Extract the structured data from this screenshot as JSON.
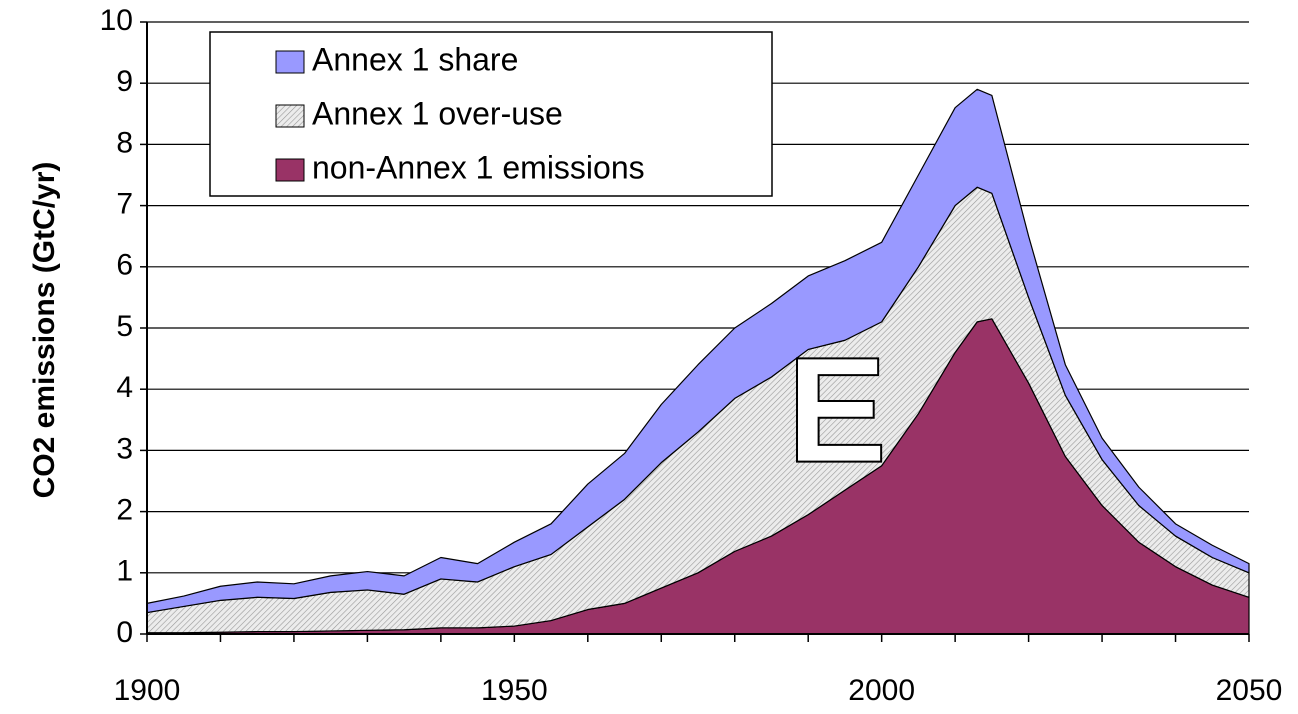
{
  "chart_data": {
    "type": "stacked_area",
    "ylabel": "CO2 emissions (GtC/yr)",
    "annotation": "E",
    "x": [
      1900,
      1905,
      1910,
      1915,
      1920,
      1925,
      1930,
      1935,
      1940,
      1945,
      1950,
      1955,
      1960,
      1965,
      1970,
      1975,
      1980,
      1985,
      1990,
      1995,
      2000,
      2005,
      2010,
      2013,
      2015,
      2020,
      2025,
      2030,
      2035,
      2040,
      2045,
      2050
    ],
    "series": [
      {
        "name": "Annex 1 share",
        "color": "#9999ff",
        "values": [
          0.15,
          0.17,
          0.23,
          0.25,
          0.24,
          0.27,
          0.3,
          0.3,
          0.35,
          0.3,
          0.4,
          0.5,
          0.7,
          0.75,
          0.95,
          1.1,
          1.15,
          1.2,
          1.2,
          1.3,
          1.3,
          1.5,
          1.6,
          1.6,
          1.6,
          1.0,
          0.5,
          0.35,
          0.3,
          0.2,
          0.2,
          0.15
        ]
      },
      {
        "name": "Annex 1 over-use",
        "color": "#d4d4d4",
        "fill_pattern": "hatch",
        "values": [
          0.33,
          0.43,
          0.52,
          0.56,
          0.54,
          0.63,
          0.66,
          0.58,
          0.8,
          0.75,
          0.97,
          1.08,
          1.35,
          1.7,
          2.05,
          2.3,
          2.5,
          2.6,
          2.7,
          2.45,
          2.35,
          2.4,
          2.4,
          2.2,
          2.05,
          1.4,
          1.0,
          0.75,
          0.6,
          0.5,
          0.45,
          0.4
        ]
      },
      {
        "name": "non-Annex 1 emissions",
        "color": "#993366",
        "values": [
          0.02,
          0.02,
          0.03,
          0.04,
          0.04,
          0.05,
          0.06,
          0.07,
          0.1,
          0.1,
          0.13,
          0.22,
          0.4,
          0.5,
          0.75,
          1.0,
          1.35,
          1.6,
          1.95,
          2.35,
          2.75,
          3.6,
          4.6,
          5.1,
          5.15,
          4.1,
          2.9,
          2.1,
          1.5,
          1.1,
          0.8,
          0.6
        ]
      }
    ],
    "xlim": [
      1900,
      2050
    ],
    "xticks": [
      1900,
      1950,
      2000,
      2050
    ],
    "xminor_ticks": [
      1910,
      1920,
      1930,
      1940,
      1960,
      1970,
      1980,
      1990,
      2010,
      2020,
      2030,
      2040
    ],
    "ylim": [
      0,
      10
    ],
    "yticks": [
      0,
      1,
      2,
      3,
      4,
      5,
      6,
      7,
      8,
      9,
      10
    ],
    "grid": true
  }
}
